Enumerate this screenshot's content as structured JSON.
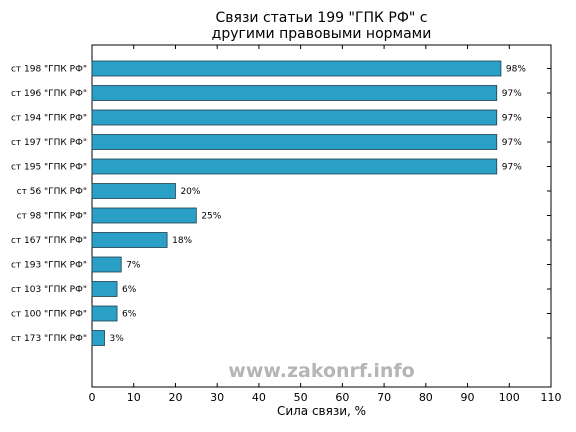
{
  "chart_data": {
    "type": "bar",
    "orientation": "horizontal",
    "title": [
      "Связи статьи 199 \"ГПК РФ\" с",
      "другими правовыми нормами"
    ],
    "xlabel": "Сила связи, %",
    "xlim": [
      0,
      110
    ],
    "xticks": [
      0,
      10,
      20,
      30,
      40,
      50,
      60,
      70,
      80,
      90,
      100,
      110
    ],
    "categories": [
      "ст 198 \"ГПК РФ\"",
      "ст 196 \"ГПК РФ\"",
      "ст 194 \"ГПК РФ\"",
      "ст 197 \"ГПК РФ\"",
      "ст 195 \"ГПК РФ\"",
      "ст 56 \"ГПК РФ\"",
      "ст 98 \"ГПК РФ\"",
      "ст 167 \"ГПК РФ\"",
      "ст 193 \"ГПК РФ\"",
      "ст 103 \"ГПК РФ\"",
      "ст 100 \"ГПК РФ\"",
      "ст 173 \"ГПК РФ\""
    ],
    "values": [
      98,
      97,
      97,
      97,
      97,
      20,
      25,
      18,
      7,
      6,
      6,
      3
    ],
    "data_labels": [
      "98%",
      "97%",
      "97%",
      "97%",
      "97%",
      "20%",
      "25%",
      "18%",
      "7%",
      "6%",
      "6%",
      "3%"
    ],
    "bar_color": "#2aa0c6",
    "grid": false,
    "legend": "none"
  },
  "watermark": "www.zakonrf.info"
}
